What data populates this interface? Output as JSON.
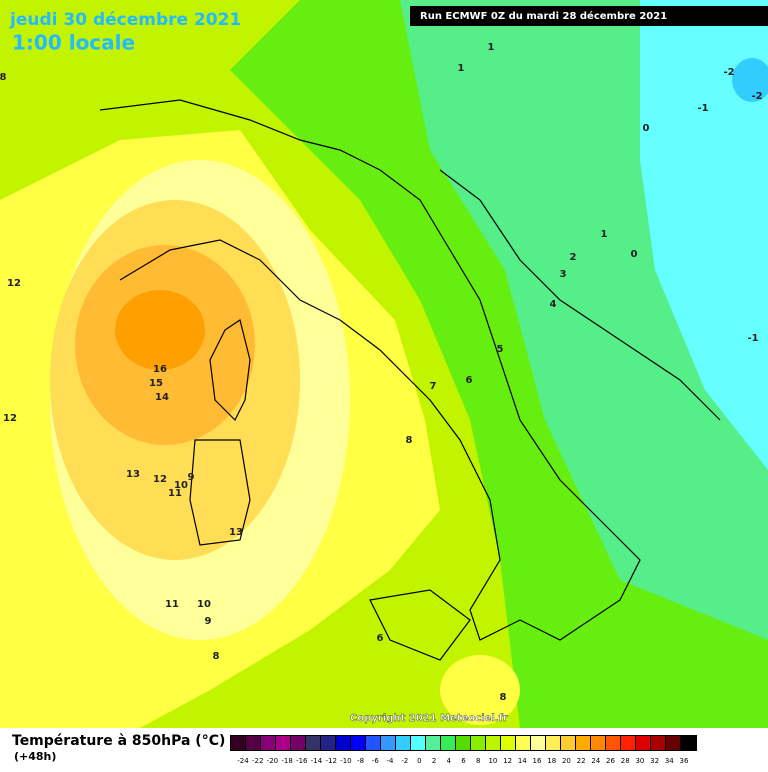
{
  "header": {
    "date": "jeudi 30 décembre 2021",
    "time": "1:00 locale",
    "run": "Run ECMWF 0Z du mardi 28 décembre 2021"
  },
  "contour_labels": [
    "1",
    "1",
    "-2",
    "-2",
    "-1",
    "0",
    "1",
    "2",
    "0",
    "3",
    "4",
    "-1",
    "5",
    "6",
    "7",
    "8",
    "16",
    "15",
    "14",
    "12",
    "13",
    "12",
    "9",
    "10",
    "11",
    "13",
    "11",
    "10",
    "9",
    "8",
    "6",
    "8",
    "12",
    "8"
  ],
  "copyright": "Copyright 2021 Meteociel.fr",
  "footer": {
    "title": "Température à 850hPa (°C)",
    "subtitle": "(+48h)"
  },
  "scale": {
    "labels": [
      "-24",
      "-22",
      "-20",
      "-18",
      "-16",
      "-14",
      "-12",
      "-10",
      "-8",
      "-6",
      "-4",
      "-2",
      "0",
      "2",
      "4",
      "6",
      "8",
      "10",
      "12",
      "14",
      "16",
      "18",
      "20",
      "22",
      "24",
      "26",
      "28",
      "30",
      "32",
      "34",
      "36"
    ],
    "colors": [
      "#330022",
      "#550044",
      "#880077",
      "#aa0088",
      "#770066",
      "#333366",
      "#222288",
      "#0000cc",
      "#0000ff",
      "#2255ff",
      "#3399ff",
      "#33ccff",
      "#55ffff",
      "#55ee99",
      "#33ee55",
      "#55dd00",
      "#88ee00",
      "#bbf500",
      "#ddff00",
      "#ffff55",
      "#ffff99",
      "#ffee55",
      "#ffcc33",
      "#ffaa00",
      "#ff8800",
      "#ff5500",
      "#ff2200",
      "#dd0000",
      "#aa0000",
      "#660000",
      "#000000"
    ]
  }
}
